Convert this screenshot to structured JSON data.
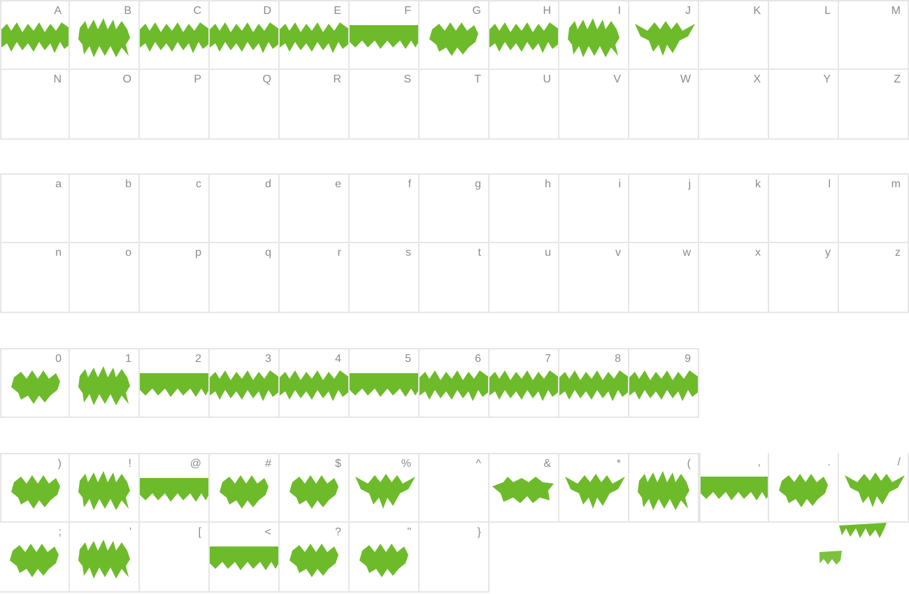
{
  "glyph_color": "#6dbb2a",
  "label_color": "#8c8c8c",
  "sections": [
    {
      "name": "uppercase",
      "rows": [
        [
          {
            "label": "A",
            "glyph": "wide"
          },
          {
            "label": "B",
            "glyph": "spiky"
          },
          {
            "label": "C",
            "glyph": "wide"
          },
          {
            "label": "D",
            "glyph": "wide"
          },
          {
            "label": "E",
            "glyph": "wide"
          },
          {
            "label": "F",
            "glyph": "block"
          },
          {
            "label": "G",
            "glyph": "compact"
          },
          {
            "label": "H",
            "glyph": "wide"
          },
          {
            "label": "I",
            "glyph": "spiky"
          },
          {
            "label": "J",
            "glyph": "wing"
          },
          {
            "label": "K",
            "glyph": "none"
          },
          {
            "label": "L",
            "glyph": "none"
          },
          {
            "label": "M",
            "glyph": "none"
          }
        ],
        [
          {
            "label": "N",
            "glyph": "none"
          },
          {
            "label": "O",
            "glyph": "none"
          },
          {
            "label": "P",
            "glyph": "none"
          },
          {
            "label": "Q",
            "glyph": "none"
          },
          {
            "label": "R",
            "glyph": "none"
          },
          {
            "label": "S",
            "glyph": "none"
          },
          {
            "label": "T",
            "glyph": "none"
          },
          {
            "label": "U",
            "glyph": "none"
          },
          {
            "label": "V",
            "glyph": "none"
          },
          {
            "label": "W",
            "glyph": "none"
          },
          {
            "label": "X",
            "glyph": "none"
          },
          {
            "label": "Y",
            "glyph": "none"
          },
          {
            "label": "Z",
            "glyph": "none"
          }
        ]
      ]
    },
    {
      "name": "lowercase",
      "rows": [
        [
          {
            "label": "a",
            "glyph": "none"
          },
          {
            "label": "b",
            "glyph": "none"
          },
          {
            "label": "c",
            "glyph": "none"
          },
          {
            "label": "d",
            "glyph": "none"
          },
          {
            "label": "e",
            "glyph": "none"
          },
          {
            "label": "f",
            "glyph": "none"
          },
          {
            "label": "g",
            "glyph": "none"
          },
          {
            "label": "h",
            "glyph": "none"
          },
          {
            "label": "i",
            "glyph": "none"
          },
          {
            "label": "j",
            "glyph": "none"
          },
          {
            "label": "k",
            "glyph": "none"
          },
          {
            "label": "l",
            "glyph": "none"
          },
          {
            "label": "m",
            "glyph": "none"
          }
        ],
        [
          {
            "label": "n",
            "glyph": "none"
          },
          {
            "label": "o",
            "glyph": "none"
          },
          {
            "label": "p",
            "glyph": "none"
          },
          {
            "label": "q",
            "glyph": "none"
          },
          {
            "label": "r",
            "glyph": "none"
          },
          {
            "label": "s",
            "glyph": "none"
          },
          {
            "label": "t",
            "glyph": "none"
          },
          {
            "label": "u",
            "glyph": "none"
          },
          {
            "label": "v",
            "glyph": "none"
          },
          {
            "label": "w",
            "glyph": "none"
          },
          {
            "label": "x",
            "glyph": "none"
          },
          {
            "label": "y",
            "glyph": "none"
          },
          {
            "label": "z",
            "glyph": "none"
          }
        ]
      ]
    },
    {
      "name": "digits",
      "rows": [
        [
          {
            "label": "0",
            "glyph": "compact"
          },
          {
            "label": "1",
            "glyph": "spiky"
          },
          {
            "label": "2",
            "glyph": "block"
          },
          {
            "label": "3",
            "glyph": "wide"
          },
          {
            "label": "4",
            "glyph": "wide"
          },
          {
            "label": "5",
            "glyph": "block"
          },
          {
            "label": "6",
            "glyph": "wide"
          },
          {
            "label": "7",
            "glyph": "wide"
          },
          {
            "label": "8",
            "glyph": "wide"
          },
          {
            "label": "9",
            "glyph": "wide"
          }
        ]
      ]
    },
    {
      "name": "symbols",
      "rows": [
        [
          {
            "label": ")",
            "glyph": "compact"
          },
          {
            "label": "!",
            "glyph": "spiky"
          },
          {
            "label": "@",
            "glyph": "block"
          },
          {
            "label": "#",
            "glyph": "compact"
          },
          {
            "label": "$",
            "glyph": "compact"
          },
          {
            "label": "%",
            "glyph": "wing"
          },
          {
            "label": "^",
            "glyph": "none"
          },
          {
            "label": "&",
            "glyph": "bold"
          },
          {
            "label": "*",
            "glyph": "wing"
          },
          {
            "label": "(",
            "glyph": "spiky"
          }
        ],
        [
          {
            "label": ",",
            "glyph": "block"
          },
          {
            "label": ".",
            "glyph": "compact"
          },
          {
            "label": "/",
            "glyph": "wing"
          },
          {
            "label": ";",
            "glyph": "compact"
          },
          {
            "label": "'",
            "glyph": "spiky"
          },
          {
            "label": "[",
            "glyph": "none"
          },
          {
            "label": "<",
            "glyph": "block"
          },
          {
            "label": "?",
            "glyph": "compact"
          },
          {
            "label": "\"",
            "glyph": "compact"
          },
          {
            "label": "}",
            "glyph": "none"
          }
        ]
      ]
    }
  ]
}
